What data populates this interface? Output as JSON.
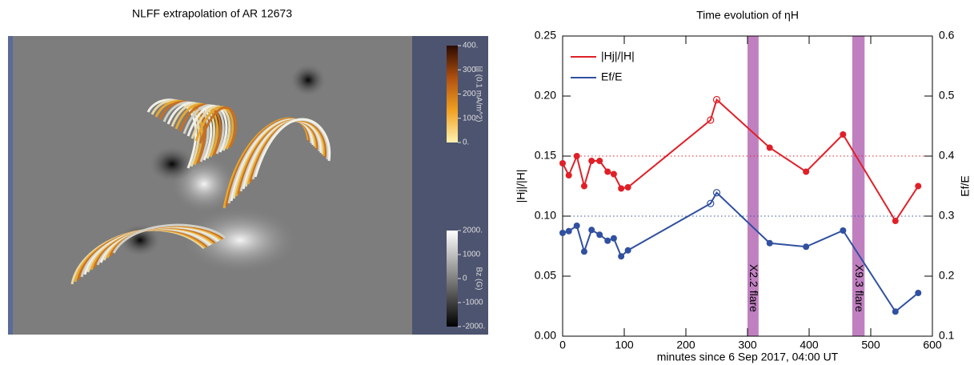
{
  "chart_data": [
    {
      "type": "image",
      "title": "NLFF extrapolation of AR 12673",
      "colorbars": [
        {
          "label": "|j| (0.1 mA/m^2)",
          "colors": [
            "#fff2b0",
            "#f0a020",
            "#b05010",
            "#2a0a00"
          ],
          "lim": [
            0,
            400
          ],
          "ticks": [
            {
              "value": 400,
              "label": "400."
            },
            300,
            200,
            100,
            {
              "value": 0,
              "label": "0."
            }
          ]
        },
        {
          "label": "Bz (G)",
          "colors": [
            "#000000",
            "#ffffff"
          ],
          "lim": [
            -2000,
            2000
          ],
          "ticks": [
            {
              "value": 2000,
              "label": "2000."
            },
            1000,
            0,
            -1000,
            {
              "value": -2000,
              "label": "-2000."
            }
          ]
        }
      ]
    },
    {
      "type": "line",
      "title": "Time evolution of ηH",
      "xlabel": "minutes since 6 Sep 2017, 04:00 UT",
      "ylabel": "|Hj|/|H|",
      "y2label": "Ef/E",
      "xlim": [
        0,
        600
      ],
      "xticks": [
        0,
        100,
        200,
        300,
        400,
        500,
        600
      ],
      "ylim": [
        0,
        0.25
      ],
      "yticks": [
        {
          "value": 0,
          "label": "0.00"
        },
        {
          "value": 0.05,
          "label": "0.05"
        },
        {
          "value": 0.1,
          "label": "0.10"
        },
        {
          "value": 0.15,
          "label": "0.15"
        },
        {
          "value": 0.2,
          "label": "0.20"
        },
        {
          "value": 0.25,
          "label": "0.25"
        }
      ],
      "y2lim": [
        0.1,
        0.6
      ],
      "y2ticks": [
        0.1,
        0.2,
        0.3,
        0.4,
        0.5,
        0.6
      ],
      "x": [
        0,
        10,
        23,
        35,
        47,
        60,
        73,
        83,
        95,
        106,
        240,
        250,
        336,
        395,
        455,
        540,
        577
      ],
      "open_markers": [
        10,
        11
      ],
      "legend": "upper left",
      "series": [
        {
          "name": "|Hj|/|H|",
          "color": "#e02028",
          "values": [
            0.144,
            0.134,
            0.15,
            0.125,
            0.146,
            0.146,
            0.137,
            0.135,
            0.123,
            0.124,
            0.18,
            0.197,
            0.157,
            0.137,
            0.168,
            0.096,
            0.125
          ]
        },
        {
          "name": "Ef/E",
          "color": "#3050a0",
          "axis": "y2",
          "values": [
            0.272,
            0.275,
            0.284,
            0.241,
            0.277,
            0.269,
            0.259,
            0.263,
            0.233,
            0.243,
            0.321,
            0.339,
            0.255,
            0.249,
            0.276,
            0.141,
            0.172
          ]
        }
      ],
      "hlines": [
        {
          "value": 0.15,
          "color": "#e02028"
        },
        {
          "value": 0.1,
          "color": "#3050a0"
        }
      ],
      "spans": [
        {
          "x": [
            300,
            318
          ],
          "label": "X2.2 flare"
        },
        {
          "x": [
            470,
            490
          ],
          "label": "X9.3 flare"
        }
      ],
      "span_color": "#b060b0"
    }
  ]
}
